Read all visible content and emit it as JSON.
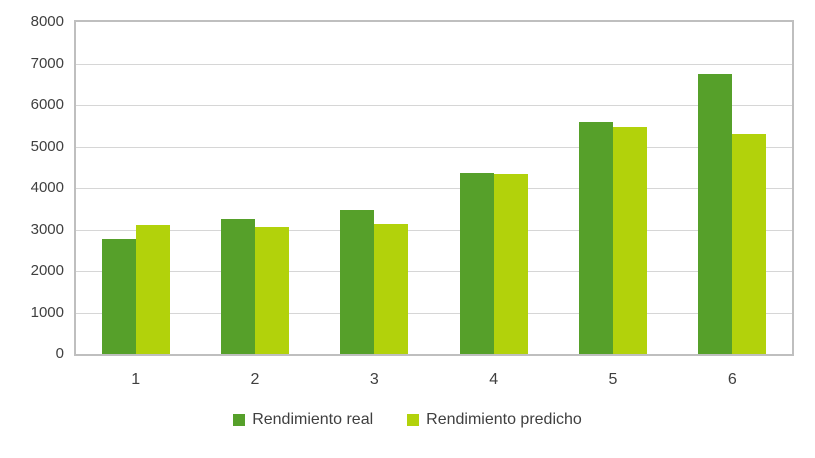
{
  "chart_data": {
    "type": "bar",
    "title": "",
    "xlabel": "",
    "ylabel": "",
    "categories": [
      "1",
      "2",
      "3",
      "4",
      "5",
      "6"
    ],
    "series": [
      {
        "name": "Rendimiento real",
        "color": "#56A02A",
        "values": [
          2760,
          3250,
          3470,
          4350,
          5580,
          6740
        ]
      },
      {
        "name": "Rendimiento predicho",
        "color": "#B2D20B",
        "values": [
          3110,
          3060,
          3140,
          4330,
          5460,
          5300
        ]
      }
    ],
    "ylim": [
      0,
      8000
    ],
    "ytick_step": 1000,
    "ytick_labels": [
      "0",
      "1000",
      "2000",
      "3000",
      "4000",
      "5000",
      "6000",
      "7000",
      "8000"
    ],
    "grid": "horizontal",
    "legend_position": "bottom"
  },
  "colors": {
    "background": "#FFFFFF",
    "plot_border": "#BFBFBF",
    "gridline": "#D6D6D6",
    "axis_text": "#3F3F3F"
  }
}
